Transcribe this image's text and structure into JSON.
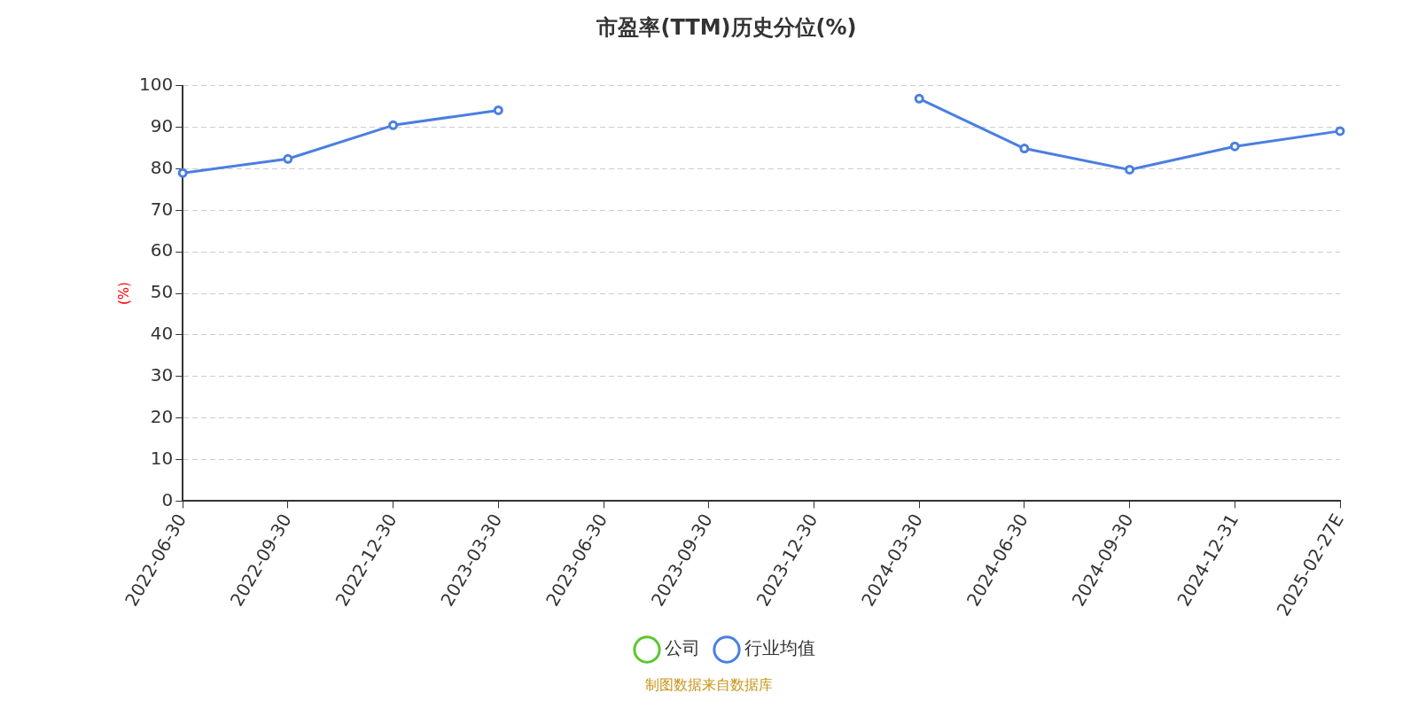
{
  "chart_data": {
    "type": "line",
    "title": "市盈率(TTM)历史分位(%)",
    "ylabel": "(%)",
    "categories": [
      "2022-06-30",
      "2022-09-30",
      "2022-12-30",
      "2023-03-30",
      "2023-06-30",
      "2023-09-30",
      "2023-12-30",
      "2024-03-30",
      "2024-06-30",
      "2024-09-30",
      "2024-12-31",
      "2025-02-27E"
    ],
    "series": [
      {
        "name": "公司",
        "color": "#5cc72e",
        "values": [
          null,
          null,
          null,
          null,
          null,
          null,
          null,
          null,
          null,
          null,
          null,
          null
        ]
      },
      {
        "name": "行业均值",
        "color": "#4a7fe0",
        "values": [
          79.0,
          82.4,
          90.5,
          94.1,
          null,
          null,
          null,
          96.9,
          84.9,
          79.8,
          85.4,
          89.1
        ]
      }
    ],
    "ylim": [
      0,
      100
    ],
    "yticks": [
      0,
      10,
      20,
      30,
      40,
      50,
      60,
      70,
      80,
      90,
      100
    ],
    "grid": "y",
    "legend": "bottom",
    "marker": "circle",
    "line_style": "solid",
    "annotations": [
      "制图数据来自数据库"
    ]
  }
}
